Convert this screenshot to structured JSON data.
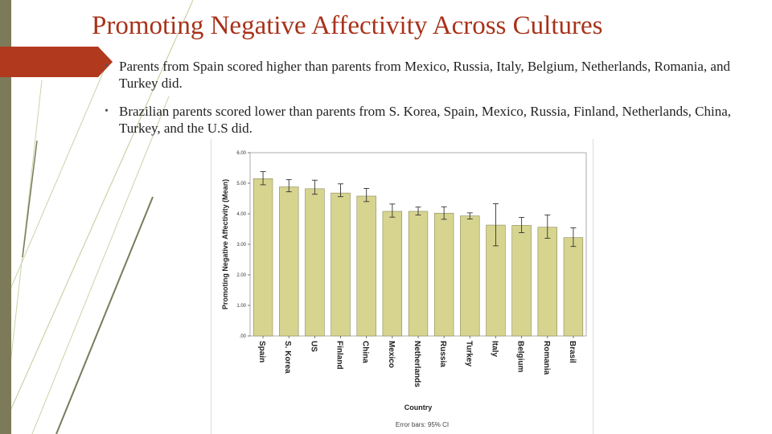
{
  "slide": {
    "title": "Promoting Negative Affectivity Across Cultures",
    "bullets": [
      "Parents from Spain scored higher than parents from Mexico, Russia, Italy, Belgium, Netherlands, Romania, and Turkey did.",
      "Brazilian parents scored lower than parents from S. Korea, Spain, Mexico, Russia, Finland, Netherlands, China, Turkey, and the U.S did."
    ],
    "bullet_marker": "•"
  },
  "colors": {
    "title": "#a8321a",
    "accent": "#b13a1e",
    "bar_fill": "#d6d48f",
    "bar_stroke": "#8a8a5a",
    "stripe": "#c5d5a9"
  },
  "chart_data": {
    "type": "bar",
    "categories": [
      "Spain",
      "S. Korea",
      "US",
      "Finland",
      "China",
      "Mexico",
      "Netherlands",
      "Russia",
      "Turkey",
      "Italy",
      "Belgium",
      "Romania",
      "Brasil"
    ],
    "values": [
      5.15,
      4.88,
      4.82,
      4.68,
      4.58,
      4.08,
      4.08,
      4.02,
      3.93,
      3.63,
      3.62,
      3.56,
      3.22
    ],
    "error_low": [
      4.95,
      4.72,
      4.64,
      4.56,
      4.4,
      3.89,
      3.96,
      3.82,
      3.83,
      2.95,
      3.38,
      3.2,
      2.93
    ],
    "error_high": [
      5.38,
      5.12,
      5.1,
      4.98,
      4.83,
      4.32,
      4.22,
      4.23,
      4.03,
      4.33,
      3.88,
      3.96,
      3.54
    ],
    "ylabel": "Promoting Negative Affectivity (Mean)",
    "xlabel": "Country",
    "ylim": [
      0,
      6
    ],
    "yticks": [
      ".00",
      "1.00",
      "2.00",
      "3.00",
      "4.00",
      "5.00",
      "6.00"
    ],
    "note": "Error bars: 95% CI"
  }
}
